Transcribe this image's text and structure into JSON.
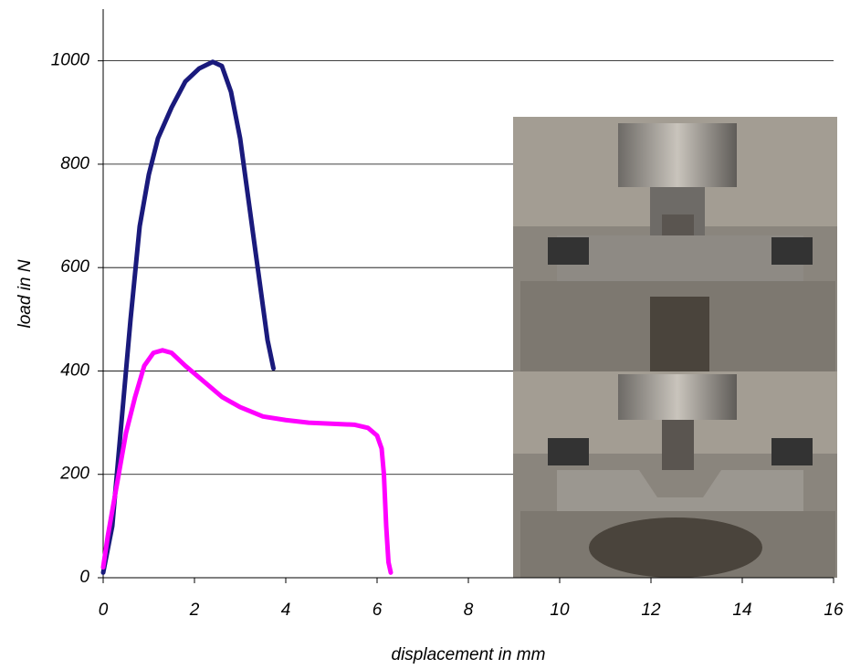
{
  "chart_data": {
    "type": "line",
    "x_label": "displacement in mm",
    "y_label": "load in N",
    "xlim": [
      0,
      16
    ],
    "xticks": [
      0,
      2,
      4,
      6,
      8,
      10,
      12,
      14,
      16
    ],
    "ylim": [
      0,
      1100
    ],
    "yticks": [
      0,
      200,
      400,
      600,
      800,
      1000
    ],
    "grid": true,
    "series": [
      {
        "color": "#1a1a7c",
        "x": [
          0,
          0.2,
          0.4,
          0.6,
          0.8,
          1,
          1.2,
          1.5,
          1.8,
          2.1,
          2.4,
          2.6,
          2.8,
          3,
          3.2,
          3.4,
          3.6,
          3.73
        ],
        "values": [
          10,
          100,
          300,
          500,
          680,
          780,
          850,
          910,
          960,
          985,
          998,
          990,
          940,
          850,
          720,
          590,
          460,
          405
        ]
      },
      {
        "color": "#ff00ff",
        "x": [
          0,
          0.1,
          0.3,
          0.5,
          0.7,
          0.9,
          1.1,
          1.3,
          1.5,
          1.8,
          2.2,
          2.6,
          3,
          3.5,
          4,
          4.5,
          5,
          5.5,
          5.8,
          6.0,
          6.1,
          6.15,
          6.2,
          6.25,
          6.3
        ],
        "values": [
          20,
          80,
          180,
          280,
          350,
          410,
          435,
          440,
          435,
          410,
          380,
          350,
          330,
          312,
          305,
          300,
          298,
          296,
          290,
          275,
          250,
          200,
          100,
          30,
          10
        ]
      }
    ]
  }
}
